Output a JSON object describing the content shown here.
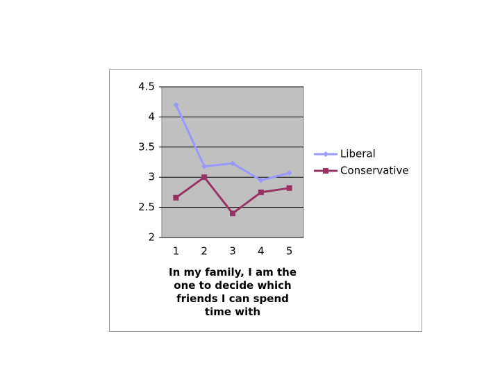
{
  "chart_data": {
    "type": "line",
    "x_label": "In my family, I am the one to decide which friends I can spend time with",
    "categories": [
      "1",
      "2",
      "3",
      "4",
      "5"
    ],
    "series": [
      {
        "name": "Liberal",
        "color": "#9999ff",
        "marker": "diamond",
        "values": [
          4.2,
          3.18,
          3.23,
          2.95,
          3.07
        ]
      },
      {
        "name": "Conservative",
        "color": "#993366",
        "marker": "square",
        "values": [
          2.66,
          3.0,
          2.4,
          2.75,
          2.82
        ]
      }
    ],
    "ylim": [
      2,
      4.5
    ],
    "yticks": [
      2,
      2.5,
      3,
      3.5,
      4,
      4.5
    ],
    "grid": true,
    "legend": "right"
  }
}
